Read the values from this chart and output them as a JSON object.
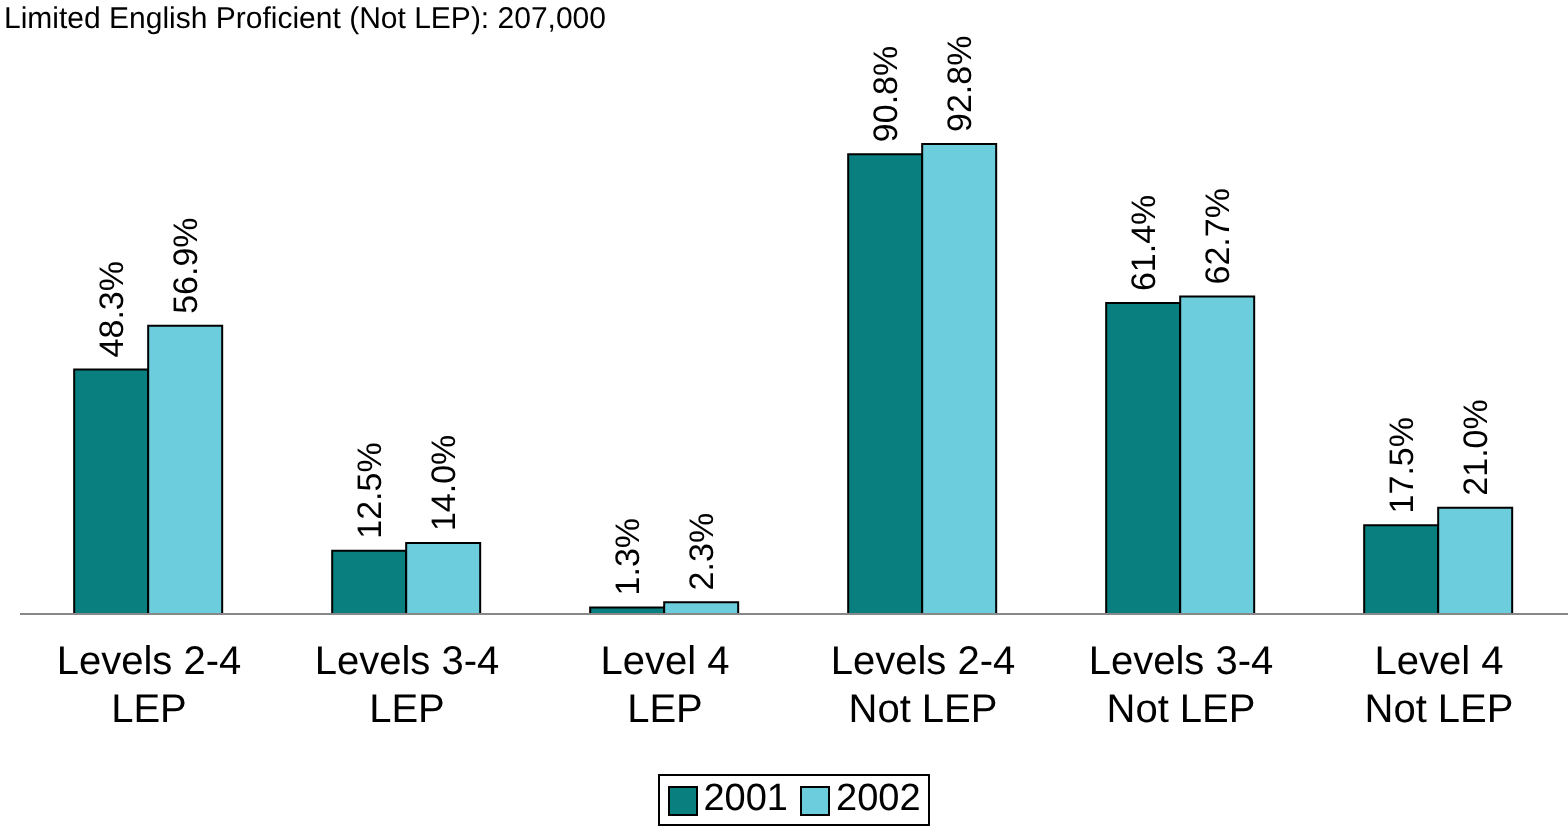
{
  "chart_data": {
    "type": "bar",
    "title": "Limited English Proficient (Not LEP): 207,000",
    "categories": [
      "Levels 2-4 LEP",
      "Levels 3-4 LEP",
      "Level 4 LEP",
      "Levels 2-4 Not LEP",
      "Levels 3-4 Not LEP",
      "Level 4 Not LEP"
    ],
    "series": [
      {
        "name": "2001",
        "color": "#0a7f7f",
        "values": [
          48.3,
          12.5,
          1.3,
          90.8,
          61.4,
          17.5
        ],
        "value_labels": [
          "48.3%",
          "12.5%",
          "1.3%",
          "90.8%",
          "61.4%",
          "17.5%"
        ]
      },
      {
        "name": "2002",
        "color": "#6ccddc",
        "values": [
          56.9,
          14.0,
          2.3,
          92.8,
          62.7,
          21.0
        ],
        "value_labels": [
          "56.9%",
          "14.0%",
          "2.3%",
          "92.8%",
          "62.7%",
          "21.0%"
        ]
      }
    ],
    "legend": "bottom",
    "grid": false
  }
}
